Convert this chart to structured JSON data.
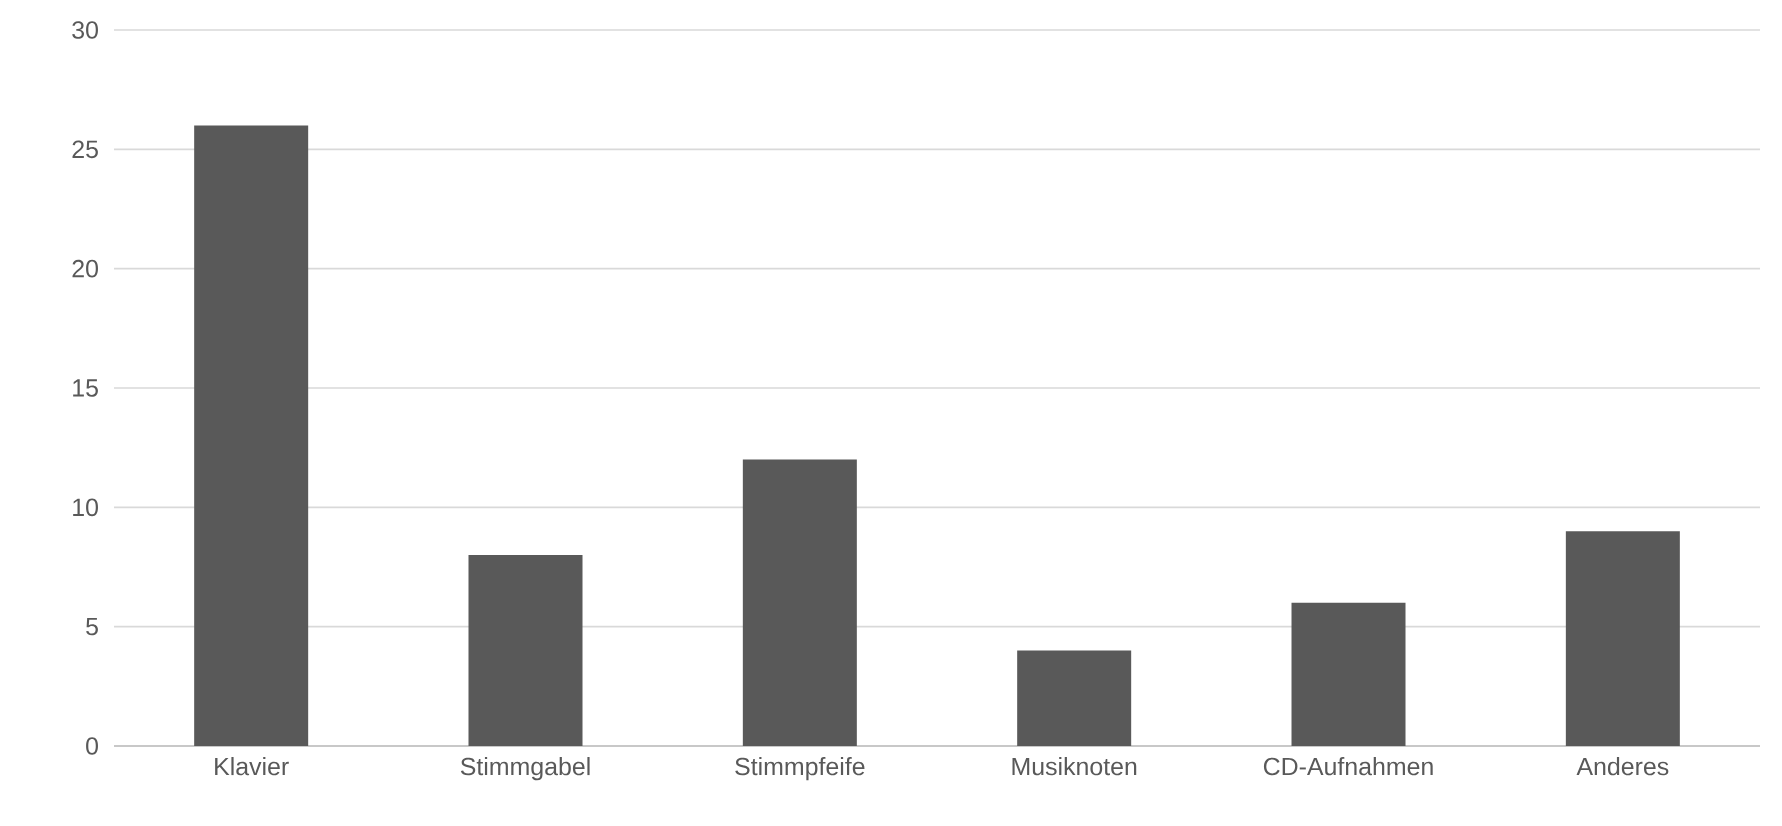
{
  "chart_data": {
    "type": "bar",
    "categories": [
      "Klavier",
      "Stimmgabel",
      "Stimmpfeife",
      "Musiknoten",
      "CD-Aufnahmen",
      "Anderes"
    ],
    "values": [
      26,
      8,
      12,
      4,
      6,
      9
    ],
    "color": "#595959",
    "ylim": [
      0,
      30
    ],
    "yticks": [
      0,
      5,
      10,
      15,
      20,
      25,
      30
    ],
    "grid": "y"
  }
}
